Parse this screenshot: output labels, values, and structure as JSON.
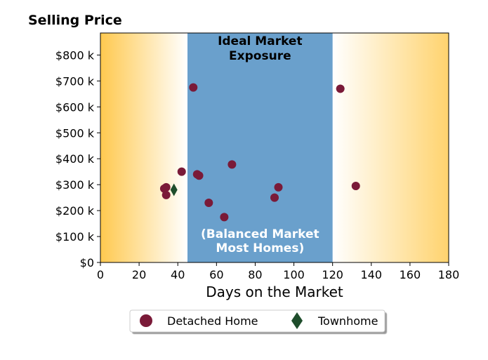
{
  "chart_data": {
    "type": "scatter",
    "title": "",
    "ylabel": "Selling Price",
    "xlabel": "Days on the Market",
    "xlim": [
      0,
      180
    ],
    "ylim": [
      0,
      885000
    ],
    "x_ticks": [
      0,
      20,
      40,
      60,
      80,
      100,
      120,
      140,
      160,
      180
    ],
    "x_tick_labels": [
      "0",
      "20",
      "40",
      "60",
      "80",
      "100",
      "120",
      "140",
      "160",
      "180"
    ],
    "y_ticks": [
      0,
      100000,
      200000,
      300000,
      400000,
      500000,
      600000,
      700000,
      800000
    ],
    "y_tick_labels": [
      "$0",
      "$100 k",
      "$200 k",
      "$300 k",
      "$400 k",
      "$500 k",
      "$600 k",
      "$700 k",
      "$800 k"
    ],
    "grid": false,
    "zones": {
      "ideal": {
        "x_range": [
          45,
          120
        ],
        "color": "#6aa0cc",
        "top_label": [
          "Ideal Market",
          "Exposure"
        ],
        "bottom_label": [
          "(Balanced Market",
          "Most Homes)"
        ]
      },
      "left_gradient": {
        "x_range": [
          0,
          45
        ],
        "color_edge": "#ffc94f",
        "color_inner": "#ffffff"
      },
      "right_gradient": {
        "x_range": [
          120,
          180
        ],
        "color_edge": "#ffd36e",
        "color_inner": "#ffffff"
      }
    },
    "series": [
      {
        "name": "Detached Home",
        "marker": "circle",
        "color": "#7a1a38",
        "points": [
          {
            "x": 33,
            "y": 285000
          },
          {
            "x": 34,
            "y": 290000
          },
          {
            "x": 34,
            "y": 260000
          },
          {
            "x": 42,
            "y": 350000
          },
          {
            "x": 48,
            "y": 675000
          },
          {
            "x": 50,
            "y": 340000
          },
          {
            "x": 51,
            "y": 335000
          },
          {
            "x": 56,
            "y": 230000
          },
          {
            "x": 64,
            "y": 175000
          },
          {
            "x": 68,
            "y": 378000
          },
          {
            "x": 90,
            "y": 250000
          },
          {
            "x": 92,
            "y": 290000
          },
          {
            "x": 124,
            "y": 670000
          },
          {
            "x": 132,
            "y": 295000
          }
        ]
      },
      {
        "name": "Townhome",
        "marker": "diamond",
        "color": "#1e4d2b",
        "points": [
          {
            "x": 38,
            "y": 280000
          }
        ]
      }
    ],
    "legend": {
      "placement": "bottom-center"
    }
  }
}
